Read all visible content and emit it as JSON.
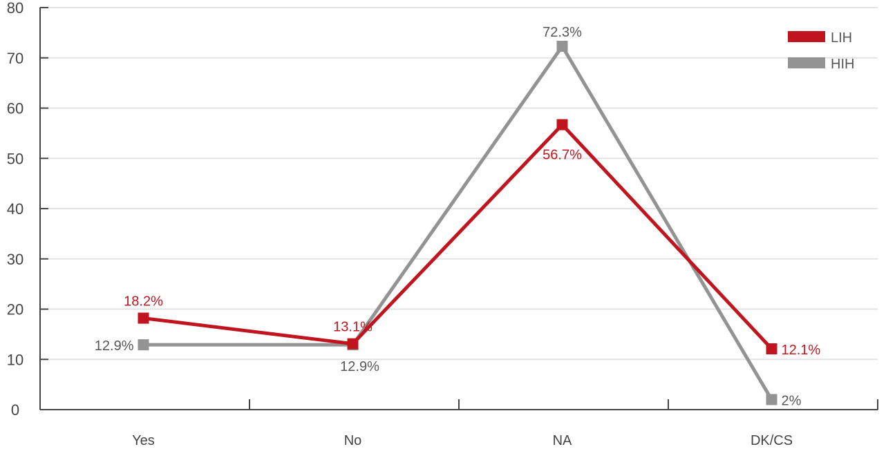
{
  "chart_data": {
    "type": "line",
    "categories": [
      "Yes",
      "No",
      "NA",
      "DK/CS"
    ],
    "ylim": [
      0,
      80
    ],
    "yticks": [
      0,
      10,
      20,
      30,
      40,
      50,
      60,
      70,
      80
    ],
    "grid": true,
    "legend_position": "top-right",
    "series": [
      {
        "name": "LIH",
        "color": "#c0151f",
        "values": [
          18.2,
          13.1,
          56.7,
          12.1
        ],
        "labels": [
          "18.2%",
          "13.1%",
          "56.7%",
          "12.1%"
        ]
      },
      {
        "name": "HIH",
        "color": "#939393",
        "values": [
          12.9,
          12.9,
          72.3,
          2
        ],
        "labels": [
          "12.9%",
          "12.9%",
          "72.3%",
          "2%"
        ]
      }
    ]
  }
}
